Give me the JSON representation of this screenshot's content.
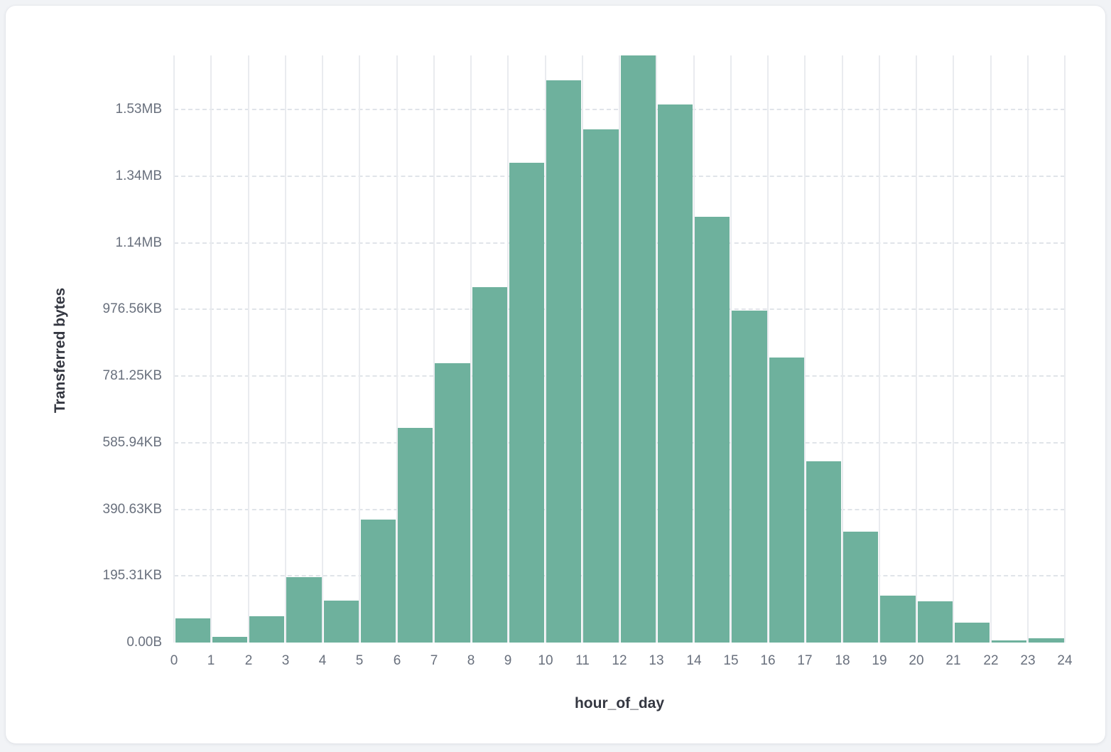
{
  "page": {
    "background_color": "#f1f3f6",
    "card_background_color": "#ffffff"
  },
  "chart_data": {
    "type": "bar",
    "title": "",
    "xlabel": "hour_of_day",
    "ylabel": "Transferred bytes",
    "units": "bytes",
    "bin_width_hours": 1,
    "categories": [
      0,
      1,
      2,
      3,
      4,
      5,
      6,
      7,
      8,
      9,
      10,
      11,
      12,
      13,
      14,
      15,
      16,
      17,
      18,
      19,
      20,
      21,
      22,
      23
    ],
    "values": [
      73000,
      17000,
      79000,
      197000,
      126000,
      370000,
      644000,
      839000,
      1067000,
      1440000,
      1688000,
      1542000,
      1763000,
      1615000,
      1279000,
      997000,
      856000,
      545000,
      334000,
      141000,
      124000,
      60000,
      6000,
      13000
    ],
    "x_tick_labels": [
      "0",
      "1",
      "2",
      "3",
      "4",
      "5",
      "6",
      "7",
      "8",
      "9",
      "10",
      "11",
      "12",
      "13",
      "14",
      "15",
      "16",
      "17",
      "18",
      "19",
      "20",
      "21",
      "22",
      "23",
      "24"
    ],
    "y_ticks": [
      {
        "value": 0,
        "label": "0.00B"
      },
      {
        "value": 200000,
        "label": "195.31KB"
      },
      {
        "value": 400000,
        "label": "390.63KB"
      },
      {
        "value": 600000,
        "label": "585.94KB"
      },
      {
        "value": 800000,
        "label": "781.25KB"
      },
      {
        "value": 1000000,
        "label": "976.56KB"
      },
      {
        "value": 1200000,
        "label": "1.14MB"
      },
      {
        "value": 1400000,
        "label": "1.34MB"
      },
      {
        "value": 1600000,
        "label": "1.53MB"
      }
    ],
    "xlim": [
      0,
      24
    ],
    "ylim": [
      0,
      1763000
    ],
    "grid": {
      "horizontal": "dashed",
      "vertical": "solid",
      "visible": true
    },
    "legend": "none",
    "bar_color": "#6eb19d",
    "vertical_grid_color": "#e9ebef",
    "horizontal_grid_color": "#e0e4e9",
    "tick_label_color": "#69707d",
    "axis_title_color": "#343741"
  }
}
